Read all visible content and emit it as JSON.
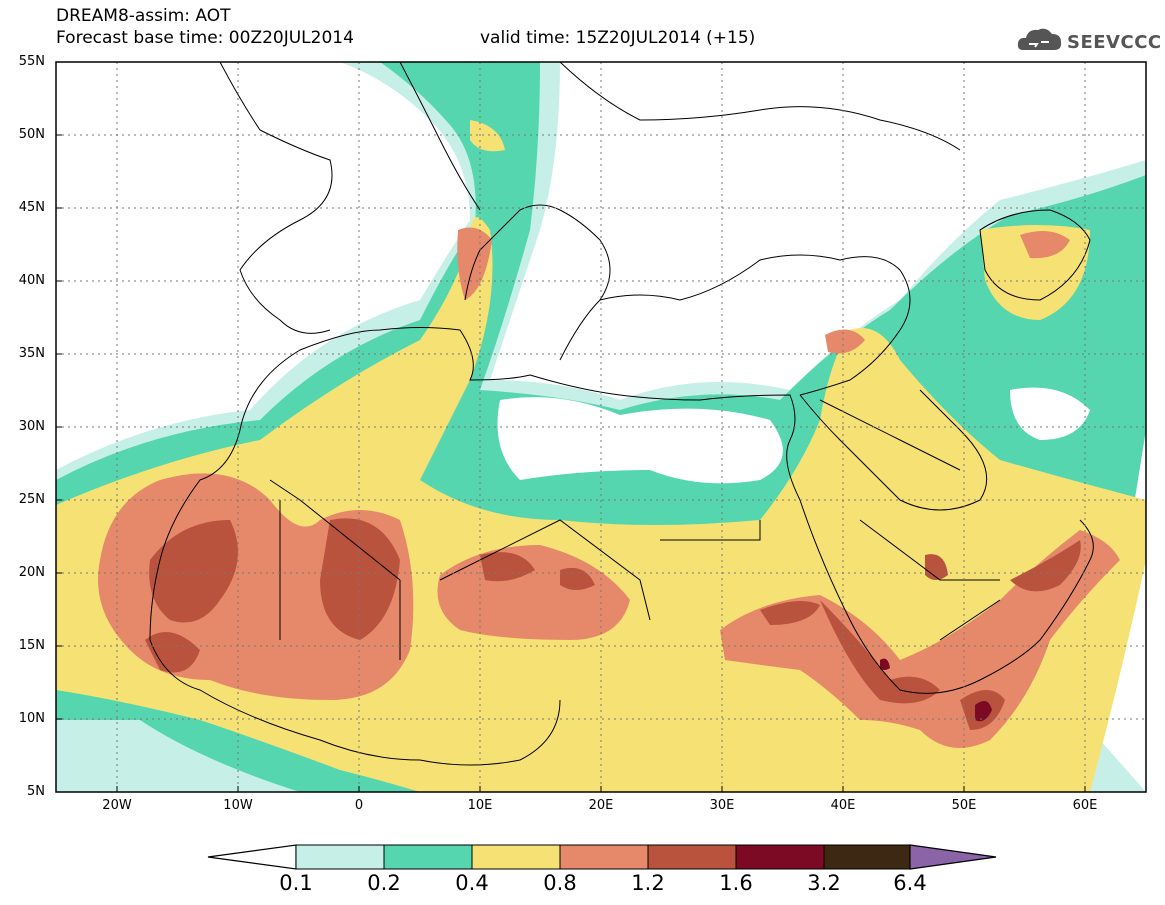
{
  "header": {
    "title": "DREAM8-assim: AOT",
    "base_time": "Forecast base time: 00Z20JUL2014",
    "valid_time": "valid time: 15Z20JUL2014 (+15)"
  },
  "logo": {
    "text": "SEEVCCC",
    "icon": "cloud-logo-icon"
  },
  "axes": {
    "lat_labels": [
      "55N",
      "50N",
      "45N",
      "40N",
      "35N",
      "30N",
      "25N",
      "20N",
      "15N",
      "10N",
      "5N"
    ],
    "lon_labels": [
      "20W",
      "10W",
      "0",
      "10E",
      "20E",
      "30E",
      "40E",
      "50E",
      "60E"
    ]
  },
  "colorbar": {
    "labels": [
      "0.1",
      "0.2",
      "0.4",
      "0.8",
      "1.2",
      "1.6",
      "3.2",
      "6.4"
    ],
    "colors": [
      "#c6efe8",
      "#55d6ae",
      "#f6e274",
      "#e6896a",
      "#b9533e",
      "#7c0a24",
      "#3d2813",
      "#8b64a8"
    ]
  }
}
